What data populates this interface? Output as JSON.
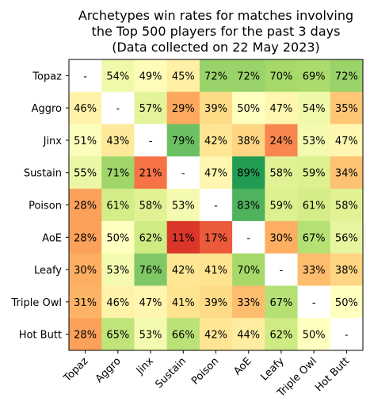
{
  "chart_data": {
    "type": "heatmap",
    "title_lines": [
      "Archetypes win rates for matches involving",
      "the Top 500 players for the past 3 days",
      "(Data collected on 22 May 2023)"
    ],
    "row_labels": [
      "Topaz",
      "Aggro",
      "Jinx",
      "Sustain",
      "Poison",
      "AoE",
      "Leafy",
      "Triple Owl",
      "Hot Butt"
    ],
    "col_labels": [
      "Topaz",
      "Aggro",
      "Jinx",
      "Sustain",
      "Poison",
      "AoE",
      "Leafy",
      "Triple Owl",
      "Hot Butt"
    ],
    "values": [
      [
        null,
        54,
        49,
        45,
        72,
        72,
        70,
        69,
        72
      ],
      [
        46,
        null,
        57,
        29,
        39,
        50,
        47,
        54,
        35
      ],
      [
        51,
        43,
        null,
        79,
        42,
        38,
        24,
        53,
        47
      ],
      [
        55,
        71,
        21,
        null,
        47,
        89,
        58,
        59,
        34
      ],
      [
        28,
        61,
        58,
        53,
        null,
        83,
        59,
        61,
        58
      ],
      [
        28,
        50,
        62,
        11,
        17,
        null,
        30,
        67,
        56
      ],
      [
        30,
        53,
        76,
        42,
        41,
        70,
        null,
        33,
        38
      ],
      [
        31,
        46,
        47,
        41,
        39,
        33,
        67,
        null,
        50
      ],
      [
        28,
        65,
        53,
        66,
        42,
        44,
        62,
        50,
        null
      ]
    ],
    "value_suffix": "%",
    "missing_label": "-",
    "colormap": "RdYlGn",
    "value_range": [
      0,
      100
    ],
    "grid": false,
    "legend": "none"
  }
}
